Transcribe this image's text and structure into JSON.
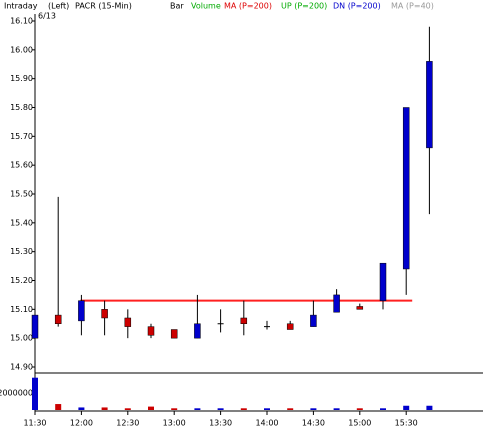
{
  "chart_data": {
    "type": "candlestick",
    "header": [
      "Intraday",
      "(Left)",
      "PACR (15-Min)",
      "Bar"
    ],
    "date": "6/13",
    "indicators": [
      {
        "name": "Volume",
        "color": "#00aa00"
      },
      {
        "name": "MA (P=200)",
        "color": "#dd0000",
        "value": 15.13
      },
      {
        "name": "UP (P=200)",
        "color": "#00aa00"
      },
      {
        "name": "DN (P=200)",
        "color": "#0000cc"
      },
      {
        "name": "MA (P=40)",
        "color": "#999999"
      }
    ],
    "categories": [
      "11:30",
      null,
      "12:00",
      null,
      "12:30",
      null,
      "13:00",
      null,
      "13:30",
      null,
      "14:00",
      null,
      "14:30",
      null,
      "15:00",
      null,
      "15:30",
      null
    ],
    "open": [
      15.0,
      15.08,
      15.06,
      15.1,
      15.07,
      15.04,
      15.03,
      15.0,
      15.05,
      15.07,
      15.04,
      15.05,
      15.04,
      15.09,
      15.11,
      15.13,
      15.24,
      15.66
    ],
    "high": [
      15.16,
      15.49,
      15.15,
      15.13,
      15.1,
      15.05,
      15.03,
      15.15,
      15.1,
      15.13,
      15.06,
      15.06,
      15.13,
      15.17,
      15.12,
      15.26,
      15.8,
      16.08
    ],
    "low": [
      14.94,
      15.04,
      15.01,
      15.01,
      15.0,
      15.0,
      15.0,
      15.0,
      15.02,
      15.01,
      15.03,
      15.03,
      15.04,
      15.09,
      15.1,
      15.1,
      15.15,
      15.43
    ],
    "close": [
      15.08,
      15.05,
      15.13,
      15.07,
      15.04,
      15.01,
      15.0,
      15.05,
      15.05,
      15.05,
      15.04,
      15.03,
      15.08,
      15.15,
      15.1,
      15.26,
      15.8,
      15.96
    ],
    "volume": [
      3800000,
      700000,
      300000,
      300000,
      200000,
      400000,
      200000,
      200000,
      200000,
      200000,
      200000,
      200000,
      200000,
      200000,
      200000,
      200000,
      500000,
      500000
    ],
    "up_color": "#0000cc",
    "down_color": "#cc0000",
    "flat_color": "#000000",
    "ylim": [
      14.9,
      16.1
    ],
    "yticks": [
      {
        "value": 14.9,
        "label": "14.90"
      },
      {
        "value": 15.0,
        "label": "15.00"
      },
      {
        "value": 15.1,
        "label": "15.10"
      },
      {
        "value": 15.2,
        "label": "15.20"
      },
      {
        "value": 15.3,
        "label": "15.30"
      },
      {
        "value": 15.4,
        "label": "15.40"
      },
      {
        "value": 15.5,
        "label": "15.50"
      },
      {
        "value": 15.6,
        "label": "15.60"
      },
      {
        "value": 15.7,
        "label": "15.70"
      },
      {
        "value": 15.8,
        "label": "15.80"
      },
      {
        "value": 15.9,
        "label": "15.90"
      },
      {
        "value": 16.0,
        "label": "16.00"
      },
      {
        "value": 16.1,
        "label": "16.10"
      }
    ],
    "volume_ylim": [
      0,
      4000000
    ],
    "volume_yticks": [
      2000000
    ]
  }
}
